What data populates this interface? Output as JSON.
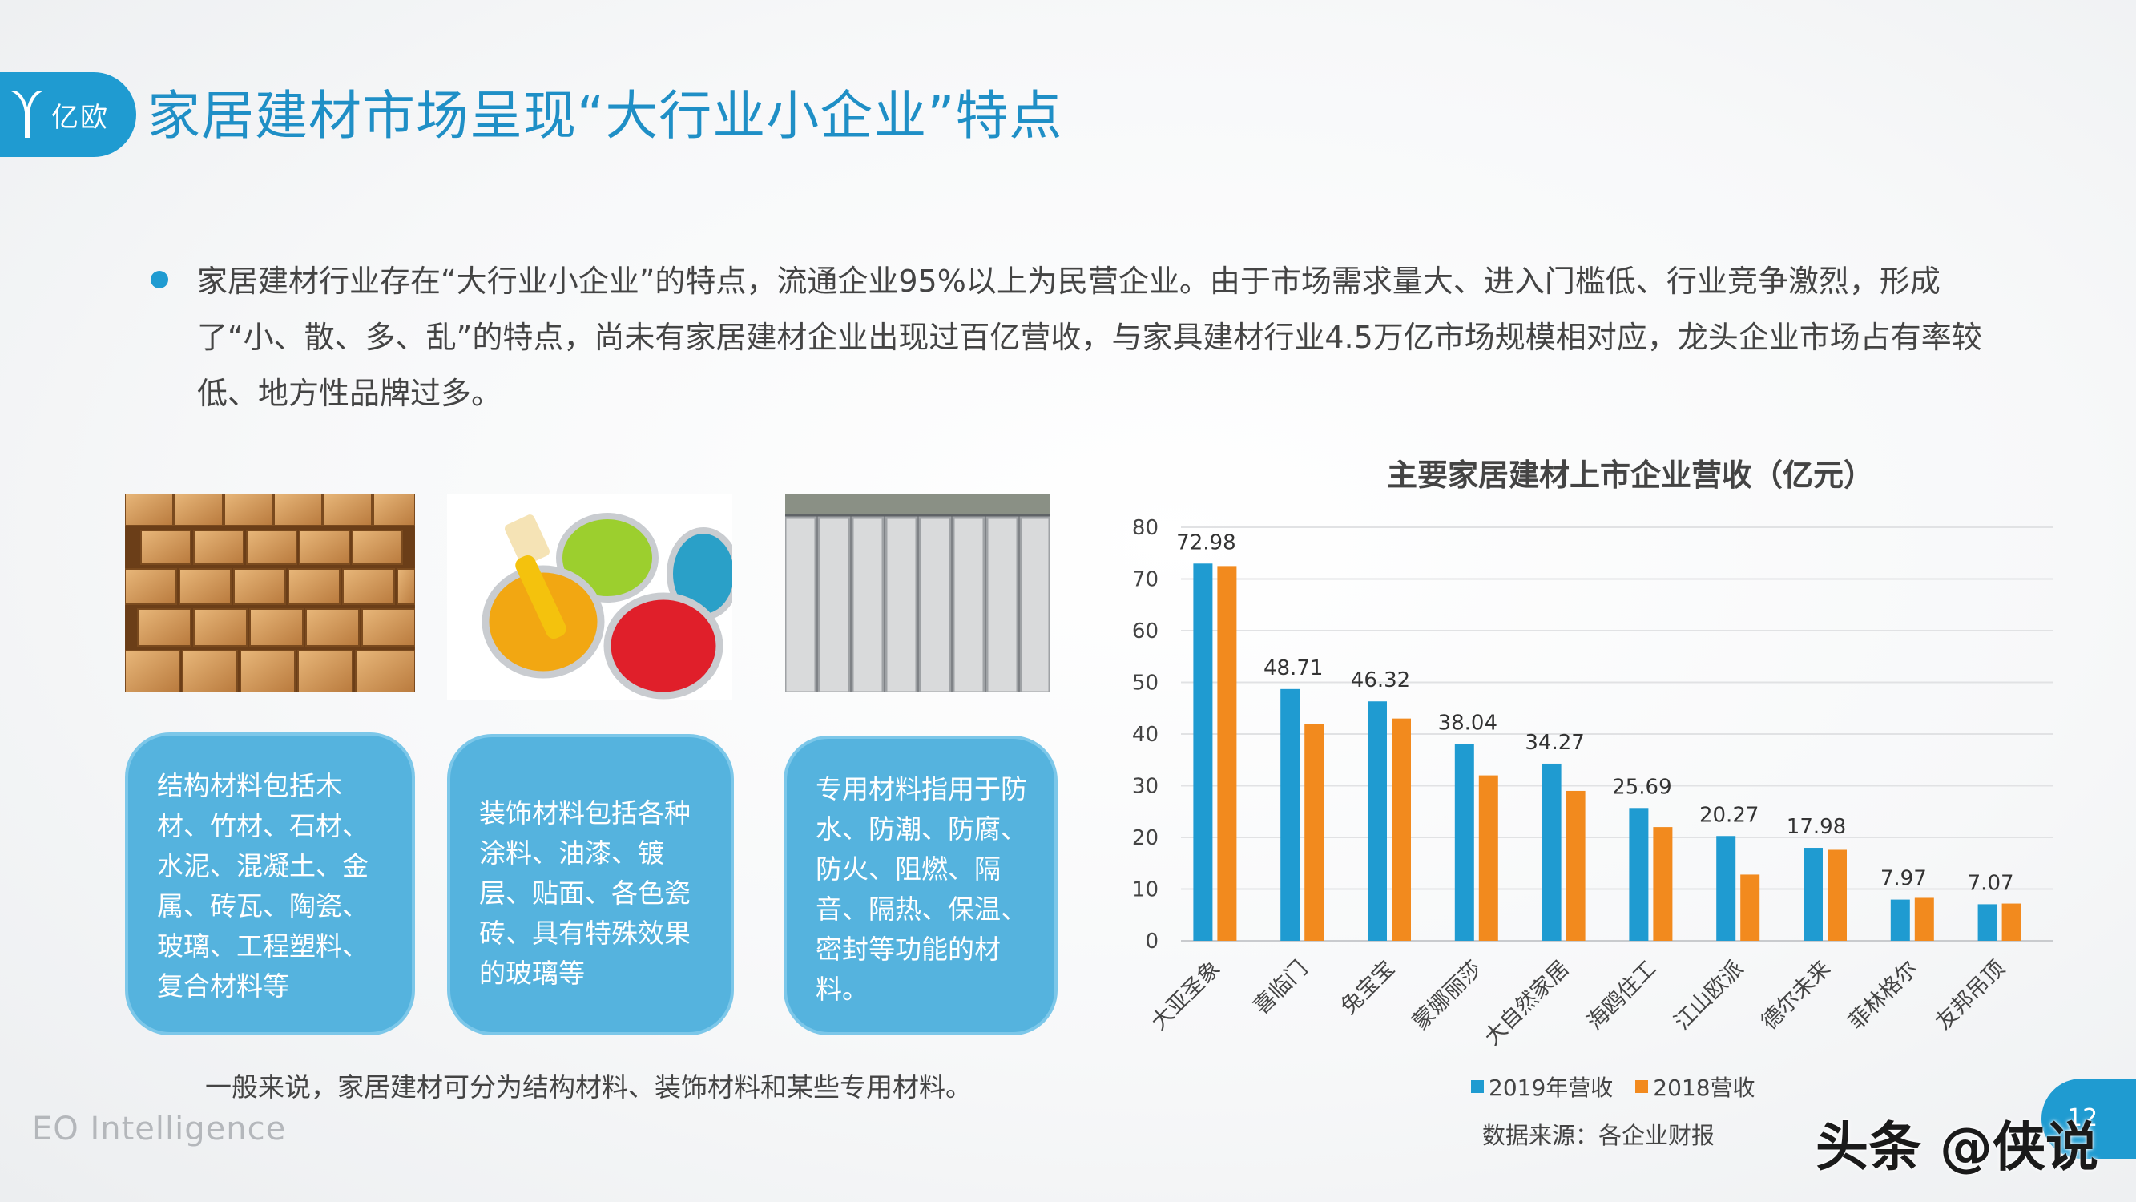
{
  "header": {
    "logo_text": "亿欧",
    "title": "家居建材市场呈现“大行业小企业”特点"
  },
  "intro": {
    "text": "家居建材行业存在“大行业小企业”的特点，流通企业95%以上为民营企业。由于市场需求量大、进入门槛低、行业竞争激烈，形成了“小、散、多、乱”的特点，尚未有家居建材企业出现过百亿营收，与家具建材行业4.5万亿市场规模相对应，龙头企业市场占有率较低、地方性品牌过多。"
  },
  "cards": [
    {
      "text": "结构材料包括木材、竹材、石材、水泥、混凝土、金属、砖瓦、陶瓷、玻璃、工程塑料、复合材料等"
    },
    {
      "text": "装饰材料包括各种涂料、油漆、镀层、贴面、各色瓷砖、具有特殊效果的玻璃等"
    },
    {
      "text": "专用材料指用于防水、防潮、防腐、防火、阻燃、隔音、隔热、保温、密封等功能的材料。"
    }
  ],
  "caption_note": "一般来说，家居建材可分为结构材料、装饰材料和某些专用材料。",
  "footer": {
    "brand": "EO Intelligence",
    "source": "数据来源：各企业财报",
    "page_number": "12",
    "watermark": "头条 @侠说"
  },
  "chart_data": {
    "type": "bar",
    "title": "主要家居建材上市企业营收（亿元）",
    "categories": [
      "大亚圣象",
      "喜临门",
      "兔宝宝",
      "蒙娜丽莎",
      "大自然家居",
      "海鸥住工",
      "江山欧派",
      "德尔未来",
      "菲林格尔",
      "友邦吊顶"
    ],
    "series": [
      {
        "name": "2019年营收",
        "color": "#1f9bd1",
        "values": [
          72.98,
          48.71,
          46.32,
          38.04,
          34.27,
          25.69,
          20.27,
          17.98,
          7.97,
          7.07
        ]
      },
      {
        "name": "2018营收",
        "color": "#f28a1e",
        "values": [
          72.5,
          42.0,
          43.0,
          32.0,
          29.0,
          22.0,
          12.8,
          17.6,
          8.3,
          7.2
        ]
      }
    ],
    "data_labels": [
      "72.98",
      "48.71",
      "46.32",
      "38.04",
      "34.27",
      "25.69",
      "20.27",
      "17.98",
      "7.97",
      "7.07"
    ],
    "ylim": [
      0,
      80
    ],
    "yticks": [
      0,
      10,
      20,
      30,
      40,
      50,
      60,
      70,
      80
    ],
    "grid": true,
    "legend_position": "bottom"
  }
}
